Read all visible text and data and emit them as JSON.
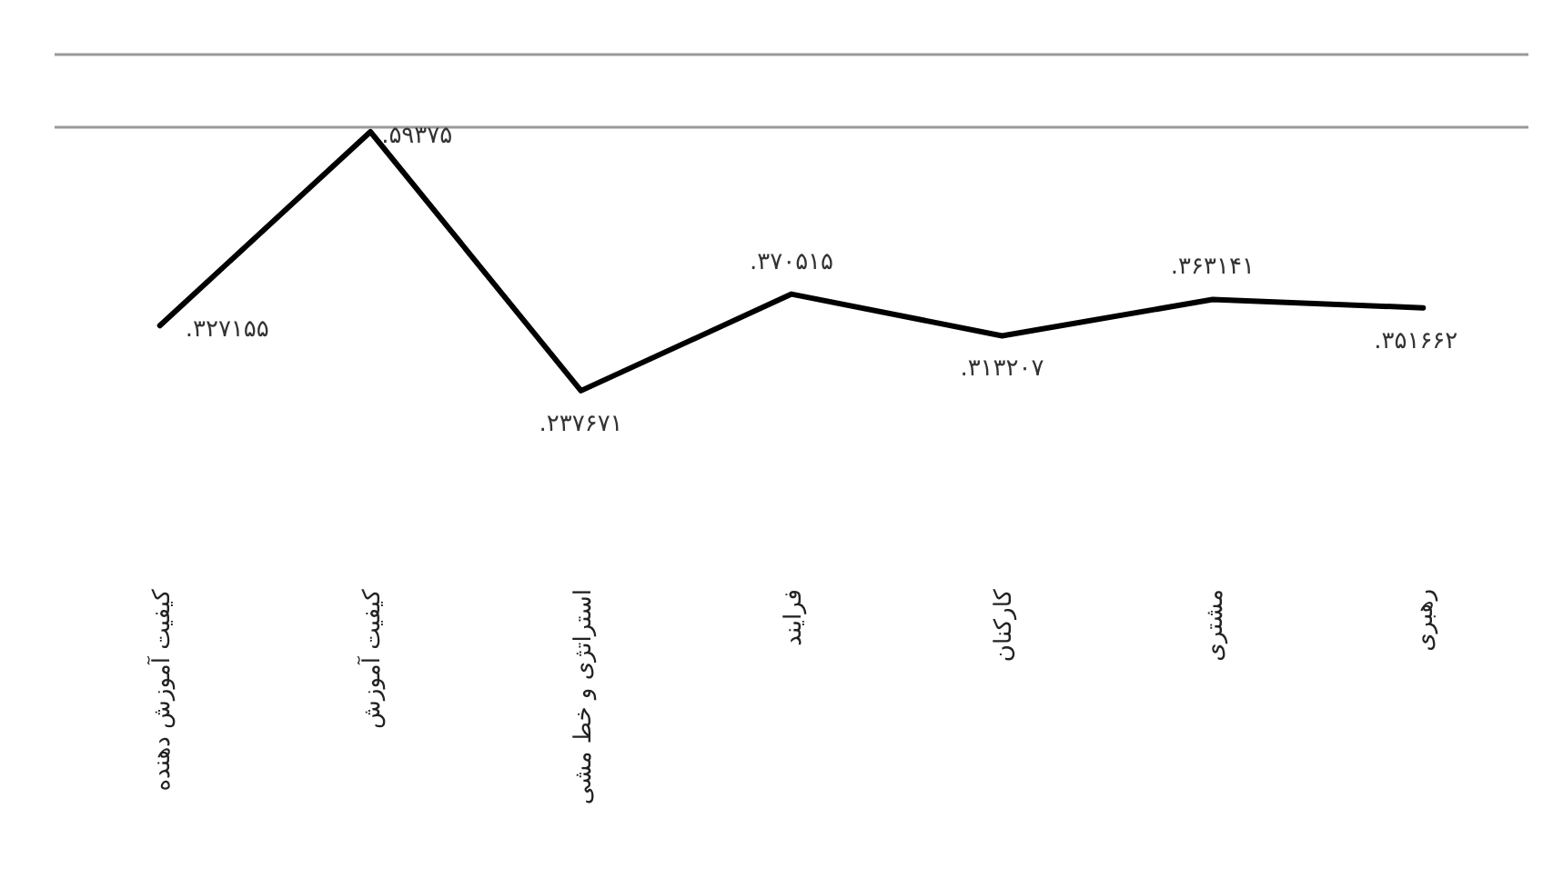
{
  "chart_data": {
    "type": "line",
    "categories": [
      "کیفیت آموزش دهنده",
      "کیفیت آموزش",
      "استراتژی و خط مشی",
      "فرایند",
      "کارکنان",
      "مشتری",
      "رهبری"
    ],
    "series": [
      {
        "color": "#000000",
        "values": [
          0.327155,
          0.59375,
          0.237671,
          0.370515,
          0.313207,
          0.363141,
          0.351662
        ],
        "value_labels": [
          ".۳۲۷۱۵۵",
          ".۵۹۳۷۵",
          ".۲۳۷۶۷۱",
          ".۳۷۰۵۱۵",
          ".۳۱۳۲۰۷",
          ".۳۶۳۱۴۱",
          ".۳۵۱۶۶۲"
        ]
      }
    ],
    "ref_lines": [
      {
        "axis": "y",
        "value": 0.6,
        "color": "#999999"
      },
      {
        "axis": "y",
        "value": 0.7,
        "color": "#999999"
      }
    ]
  }
}
